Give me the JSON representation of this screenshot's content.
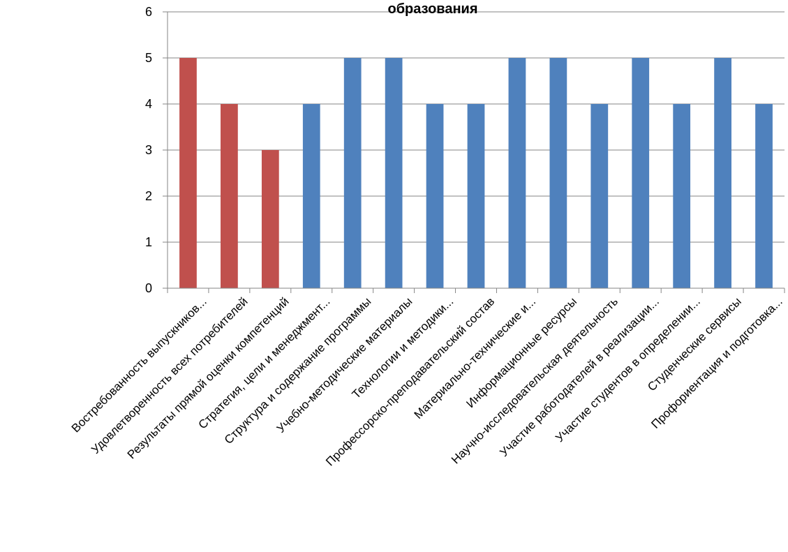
{
  "chart_data": {
    "type": "bar",
    "title": "образования",
    "xlabel": "",
    "ylabel": "",
    "ylim": [
      0,
      6
    ],
    "yticks": [
      0,
      1,
      2,
      3,
      4,
      5,
      6
    ],
    "grid": true,
    "categories": [
      "Востребованность выпускников...",
      "Удовлетворенность всех потребителей",
      "Результаты прямой оценки компетенций",
      "Стратегия, цели и менеджмент...",
      "Структура и содержание программы",
      "Учебно-методические материалы",
      "Технологии и методики...",
      "Профессорско-преподавательский состав",
      "Материально-технические и...",
      "Информационные ресурсы",
      "Научно-исследовательская деятельность",
      "Участие работодателей в реализации...",
      "Участие студентов в определении...",
      "Студенческие сервисы",
      "Профориентация и подготовка..."
    ],
    "values": [
      5,
      4,
      3,
      4,
      5,
      5,
      4,
      4,
      5,
      5,
      4,
      5,
      4,
      5,
      4
    ],
    "bar_colors": [
      "#C0504D",
      "#C0504D",
      "#C0504D",
      "#4F81BD",
      "#4F81BD",
      "#4F81BD",
      "#4F81BD",
      "#4F81BD",
      "#4F81BD",
      "#4F81BD",
      "#4F81BD",
      "#4F81BD",
      "#4F81BD",
      "#4F81BD",
      "#4F81BD"
    ],
    "colors": {
      "grid": "#868686",
      "axis": "#868686"
    }
  }
}
